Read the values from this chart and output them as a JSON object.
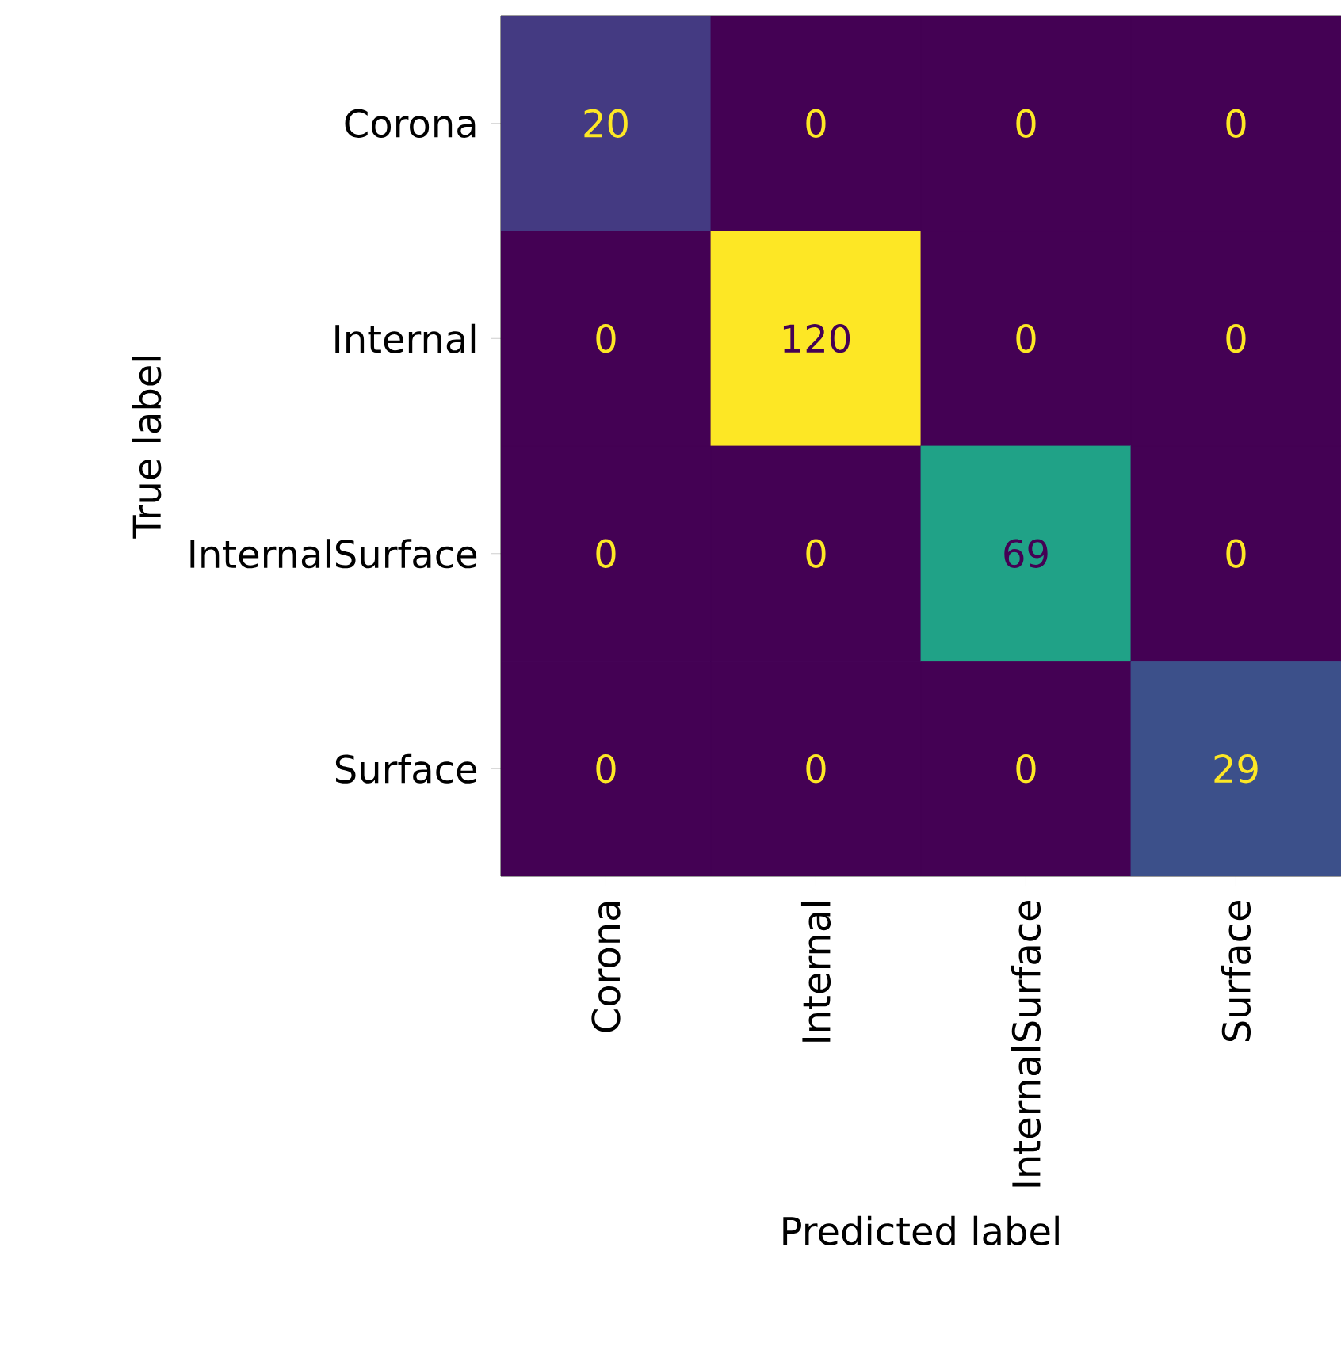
{
  "chart_data": {
    "type": "heatmap",
    "data_labels": true,
    "xlabel": "Predicted label",
    "ylabel": "True label",
    "categories": [
      "Corona",
      "Internal",
      "InternalSurface",
      "Surface"
    ],
    "y_categories": [
      "Corona",
      "Internal",
      "InternalSurface",
      "Surface"
    ],
    "cells": [
      [
        20,
        0,
        0,
        0
      ],
      [
        0,
        120,
        0,
        0
      ],
      [
        0,
        0,
        69,
        0
      ],
      [
        0,
        0,
        0,
        29
      ]
    ]
  }
}
